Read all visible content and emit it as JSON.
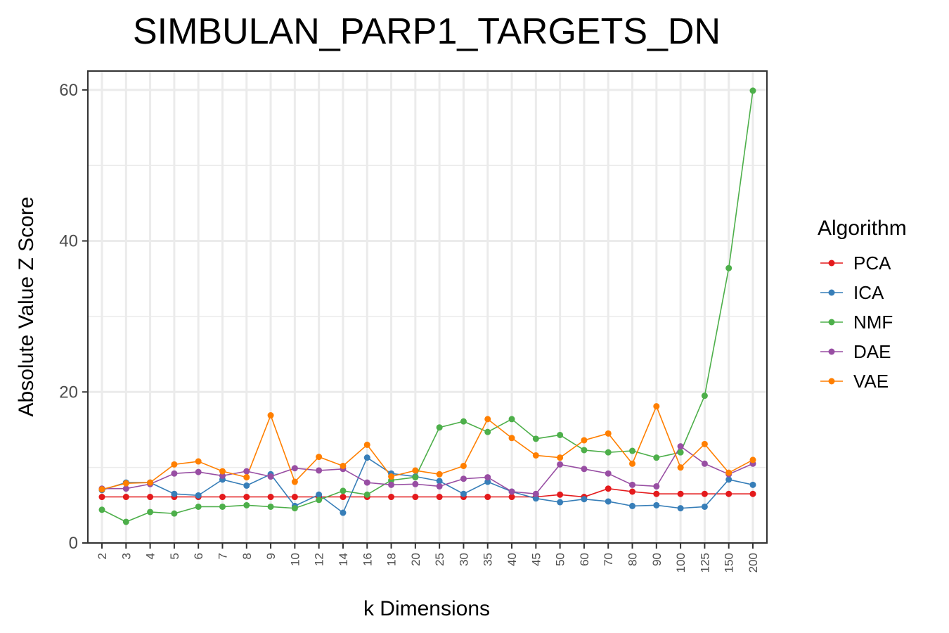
{
  "chart_data": {
    "type": "line",
    "title": "SIMBULAN_PARP1_TARGETS_DN",
    "xlabel": "k Dimensions",
    "ylabel": "Absolute Value Z Score",
    "categories": [
      "2",
      "3",
      "4",
      "5",
      "6",
      "7",
      "8",
      "9",
      "10",
      "12",
      "14",
      "16",
      "18",
      "20",
      "25",
      "30",
      "35",
      "40",
      "45",
      "50",
      "60",
      "70",
      "80",
      "90",
      "100",
      "125",
      "150",
      "200"
    ],
    "ylim": [
      0,
      62.5
    ],
    "yticks": [
      0,
      20,
      40,
      60
    ],
    "grid": true,
    "legend_title": "Algorithm",
    "legend_position": "right",
    "series": [
      {
        "name": "PCA",
        "color": "#e41a1c",
        "values": [
          6.1,
          6.1,
          6.1,
          6.1,
          6.1,
          6.1,
          6.1,
          6.1,
          6.1,
          6.1,
          6.1,
          6.1,
          6.1,
          6.1,
          6.1,
          6.1,
          6.1,
          6.1,
          6.1,
          6.4,
          6.1,
          7.2,
          6.8,
          6.5,
          6.5,
          6.5,
          6.5,
          6.5
        ]
      },
      {
        "name": "ICA",
        "color": "#377eb8",
        "values": [
          7.0,
          8.0,
          8.0,
          6.5,
          6.3,
          8.4,
          7.6,
          9.1,
          4.9,
          6.4,
          4.0,
          11.3,
          9.2,
          8.8,
          8.2,
          6.5,
          8.1,
          6.8,
          5.9,
          5.4,
          5.8,
          5.5,
          4.9,
          5.0,
          4.6,
          4.8,
          8.4,
          7.7
        ]
      },
      {
        "name": "NMF",
        "color": "#4daf4a",
        "values": [
          4.4,
          2.8,
          4.1,
          3.9,
          4.8,
          4.8,
          5.0,
          4.8,
          4.6,
          5.7,
          6.9,
          6.4,
          8.3,
          8.7,
          15.3,
          16.1,
          14.7,
          16.4,
          13.8,
          14.3,
          12.3,
          12.0,
          12.2,
          11.3,
          12.0,
          19.5,
          36.4,
          59.9
        ]
      },
      {
        "name": "DAE",
        "color": "#984ea3",
        "values": [
          7.2,
          7.2,
          7.8,
          9.2,
          9.4,
          8.9,
          9.5,
          8.8,
          9.9,
          9.6,
          9.8,
          8.0,
          7.7,
          7.8,
          7.5,
          8.5,
          8.7,
          6.8,
          6.5,
          10.4,
          9.8,
          9.2,
          7.7,
          7.5,
          12.8,
          10.5,
          9.1,
          10.5
        ]
      },
      {
        "name": "VAE",
        "color": "#ff7f00",
        "values": [
          7.1,
          7.9,
          8.0,
          10.4,
          10.8,
          9.5,
          8.7,
          16.9,
          8.1,
          11.4,
          10.2,
          13.0,
          8.8,
          9.6,
          9.1,
          10.2,
          16.4,
          13.9,
          11.6,
          11.3,
          13.6,
          14.5,
          10.5,
          18.1,
          10.0,
          13.1,
          9.3,
          11.0
        ]
      }
    ]
  }
}
